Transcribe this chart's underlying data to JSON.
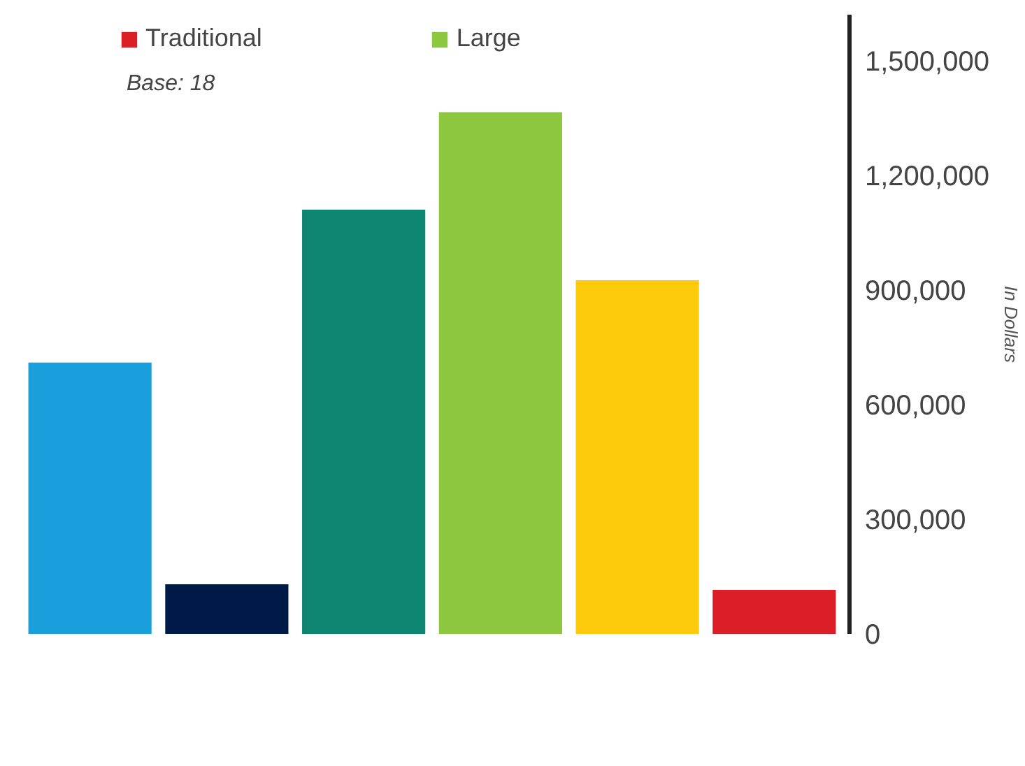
{
  "chart_data": {
    "type": "bar",
    "categories": [
      null,
      null,
      null,
      null,
      null,
      null
    ],
    "series": [
      {
        "color": "#189fdc",
        "values": [
          710000,
          null,
          null,
          null,
          null,
          null
        ]
      },
      {
        "color": "#001a47",
        "values": [
          null,
          130000,
          null,
          null,
          null,
          null
        ]
      },
      {
        "color": "#0e8570",
        "values": [
          null,
          null,
          1110000,
          null,
          null,
          null
        ]
      },
      {
        "name": "Large",
        "color": "#8dc63f",
        "values": [
          null,
          null,
          null,
          1365000,
          null,
          null
        ]
      },
      {
        "color": "#fdc90b",
        "values": [
          null,
          null,
          null,
          null,
          925000,
          null
        ]
      },
      {
        "name": "Traditional",
        "color": "#da1f26",
        "values": [
          null,
          null,
          null,
          null,
          null,
          115000
        ]
      }
    ],
    "ylabel": "In Dollars",
    "annotations": [
      "Base: 18"
    ],
    "ylim": [
      0,
      1620000
    ],
    "yticks": [
      {
        "value": 0,
        "label": "0"
      },
      {
        "value": 300000,
        "label": "300,000"
      },
      {
        "value": 600000,
        "label": "600,000"
      },
      {
        "value": 900000,
        "label": "900,000"
      },
      {
        "value": 1200000,
        "label": "1,200,000"
      },
      {
        "value": 1500000,
        "label": "1,500,000"
      }
    ],
    "grid": false,
    "stacked": true,
    "legend": "top left"
  }
}
